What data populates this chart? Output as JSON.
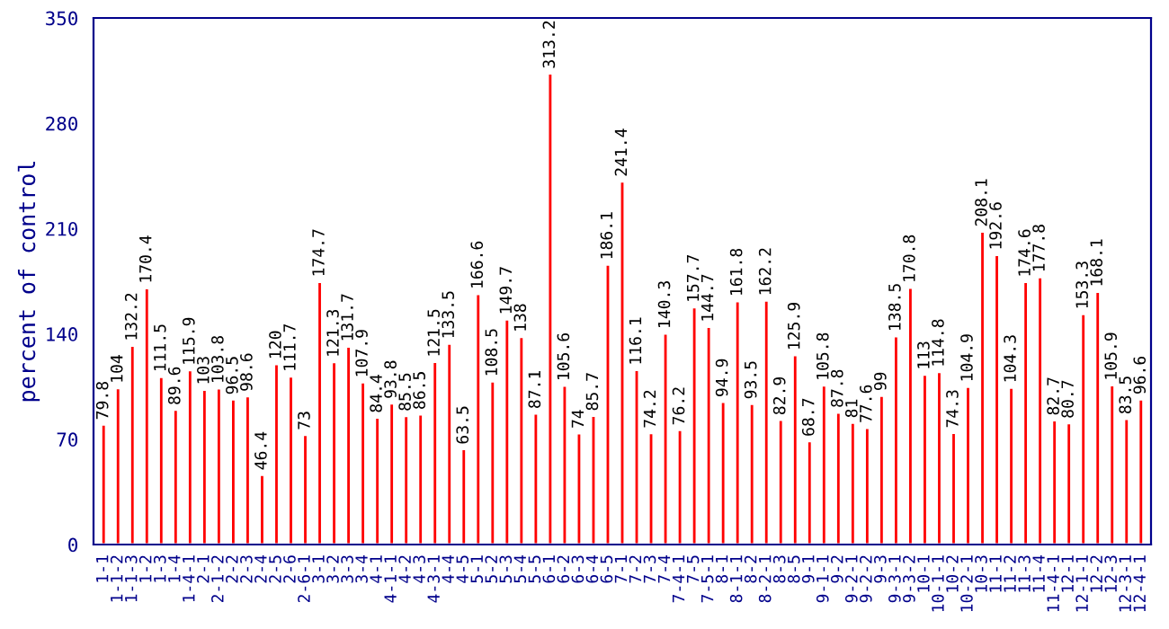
{
  "chart_data": {
    "type": "bar",
    "ylabel": "percent of control",
    "categories": [
      "1-1",
      "1-1-2",
      "1-1-3",
      "1-2",
      "1-3",
      "1-4",
      "1-4-1",
      "2-1",
      "2-1-2",
      "2-2",
      "2-3",
      "2-4",
      "2-5",
      "2-6",
      "2-6-1",
      "3-1",
      "3-2",
      "3-3",
      "3-4",
      "4-1",
      "4-1-1",
      "4-2",
      "4-3",
      "4-3-1",
      "4-4",
      "4-5",
      "5-1",
      "5-2",
      "5-3",
      "5-4",
      "5-5",
      "6-1",
      "6-2",
      "6-3",
      "6-4",
      "6-5",
      "7-1",
      "7-2",
      "7-3",
      "7-4",
      "7-4-1",
      "7-5",
      "7-5-1",
      "8-1",
      "8-1-1",
      "8-2",
      "8-2-1",
      "8-3",
      "8-5",
      "9-1",
      "9-1-1",
      "9-2",
      "9-2-1",
      "9-2-2",
      "9-3",
      "9-3-1",
      "9-3-2",
      "10-1",
      "10-1-1",
      "10-2",
      "10-2-1",
      "10-3",
      "11-1",
      "11-2",
      "11-3",
      "11-4",
      "11-4-1",
      "12-1",
      "12-1-1",
      "12-2",
      "12-3",
      "12-3-1",
      "12-4-1"
    ],
    "values": [
      79.8,
      104,
      132.2,
      170.4,
      111.5,
      89.6,
      115.9,
      103,
      103.8,
      96.5,
      98.6,
      46.4,
      120,
      111.7,
      73,
      174.7,
      121.3,
      131.7,
      107.9,
      84.4,
      93.8,
      85.5,
      86.5,
      121.5,
      133.5,
      63.5,
      166.6,
      108.5,
      149.7,
      138,
      87.1,
      313.2,
      105.6,
      74,
      85.7,
      186.1,
      241.4,
      116.1,
      74.2,
      140.3,
      76.2,
      157.7,
      144.7,
      94.9,
      161.8,
      93.5,
      162.2,
      82.9,
      125.9,
      68.7,
      105.8,
      87.8,
      81,
      77.6,
      99,
      138.5,
      170.8,
      113,
      114.8,
      74.3,
      104.9,
      208.1,
      192.6,
      104.3,
      174.6,
      177.8,
      82.7,
      80.7,
      153.3,
      168.1,
      105.9,
      83.5,
      96.6
    ],
    "color": "#ff0000",
    "ylim": [
      0,
      350
    ],
    "yticks": [
      0,
      70,
      140,
      210,
      280,
      350
    ],
    "data_labels": true,
    "grid": false,
    "legend": false
  }
}
